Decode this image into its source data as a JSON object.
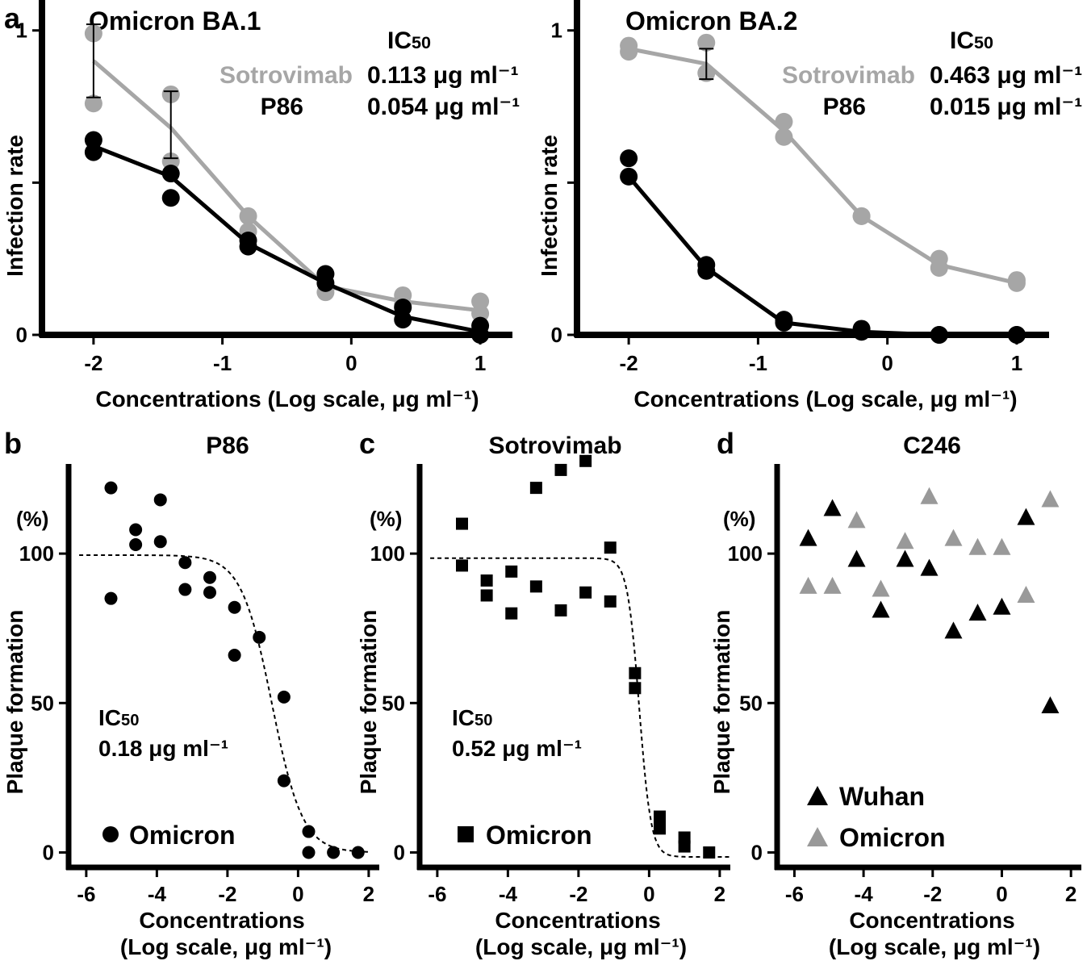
{
  "colors": {
    "gray": "#a6a6a6",
    "black": "#000000",
    "triangle_gray": "#999999"
  },
  "chart_data": [
    {
      "panel": "a",
      "type": "line",
      "title": "Omicron BA.1",
      "xlabel": "Concentrations (Log scale, μg ml⁻¹)",
      "ylabel": "Infection rate",
      "xlim": [
        -2.4,
        1.25
      ],
      "ylim": [
        0,
        1.1
      ],
      "xticks": [
        -2,
        -1,
        0,
        1
      ],
      "yticks": [
        0,
        0.5,
        1
      ],
      "ytick_labels": [
        "0",
        "",
        "1"
      ],
      "ic50_header": "IC50",
      "ic50_entries": [
        {
          "name": "Sotrovimab",
          "value": "0.113 μg ml⁻¹"
        },
        {
          "name": "P86",
          "value": "0.054 μg ml⁻¹"
        }
      ],
      "series": [
        {
          "name": "Sotrovimab",
          "color": "#a6a6a6",
          "x": [
            -2,
            -1.4,
            -0.8,
            -0.2,
            0.4,
            1
          ],
          "y": [
            0.9,
            0.68,
            0.39,
            0.16,
            0.11,
            0.08
          ],
          "points": [
            [
              -2,
              0.99
            ],
            [
              -2,
              0.76
            ],
            [
              -1.4,
              0.79
            ],
            [
              -1.4,
              0.57
            ],
            [
              -0.8,
              0.39
            ],
            [
              -0.8,
              0.34
            ],
            [
              -0.2,
              0.2
            ],
            [
              -0.2,
              0.14
            ],
            [
              0.4,
              0.13
            ],
            [
              0.4,
              0.1
            ],
            [
              1,
              0.11
            ],
            [
              1,
              0.07
            ]
          ],
          "error_bars": [
            [
              -2,
              0.78,
              1.02
            ],
            [
              -1.4,
              0.58,
              0.8
            ]
          ]
        },
        {
          "name": "P86",
          "color": "#000000",
          "x": [
            -2,
            -1.4,
            -0.8,
            -0.2,
            0.4,
            1
          ],
          "y": [
            0.62,
            0.52,
            0.3,
            0.17,
            0.06,
            0.01
          ],
          "points": [
            [
              -2,
              0.64
            ],
            [
              -2,
              0.6
            ],
            [
              -1.4,
              0.53
            ],
            [
              -1.4,
              0.45
            ],
            [
              -0.8,
              0.31
            ],
            [
              -0.8,
              0.29
            ],
            [
              -0.2,
              0.2
            ],
            [
              -0.2,
              0.17
            ],
            [
              0.4,
              0.09
            ],
            [
              0.4,
              0.05
            ],
            [
              1,
              0.03
            ],
            [
              1,
              0.0
            ]
          ]
        }
      ]
    },
    {
      "panel": "",
      "type": "line",
      "title": "Omicron BA.2",
      "xlabel": "Concentrations (Log scale, μg ml⁻¹)",
      "ylabel": "Infection rate",
      "xlim": [
        -2.4,
        1.25
      ],
      "ylim": [
        0,
        1.1
      ],
      "xticks": [
        -2,
        -1,
        0,
        1
      ],
      "yticks": [
        0,
        0.5,
        1
      ],
      "ytick_labels": [
        "0",
        "",
        "1"
      ],
      "ic50_header": "IC50",
      "ic50_entries": [
        {
          "name": "Sotrovimab",
          "value": "0.463 μg ml⁻¹"
        },
        {
          "name": "P86",
          "value": "0.015 μg ml⁻¹"
        }
      ],
      "series": [
        {
          "name": "Sotrovimab",
          "color": "#a6a6a6",
          "x": [
            -2,
            -1.4,
            -0.8,
            -0.2,
            0.4,
            1
          ],
          "y": [
            0.94,
            0.89,
            0.67,
            0.39,
            0.23,
            0.17
          ],
          "points": [
            [
              -2,
              0.95
            ],
            [
              -2,
              0.93
            ],
            [
              -1.4,
              0.96
            ],
            [
              -1.4,
              0.86
            ],
            [
              -0.8,
              0.7
            ],
            [
              -0.8,
              0.65
            ],
            [
              -0.2,
              0.39
            ],
            [
              -0.2,
              0.39
            ],
            [
              0.4,
              0.25
            ],
            [
              0.4,
              0.22
            ],
            [
              1,
              0.18
            ],
            [
              1,
              0.17
            ]
          ],
          "error_bars": [
            [
              -1.4,
              0.84,
              0.94
            ]
          ]
        },
        {
          "name": "P86",
          "color": "#000000",
          "x": [
            -2,
            -1.4,
            -0.8,
            -0.2,
            0.4,
            1
          ],
          "y": [
            0.52,
            0.22,
            0.04,
            0.01,
            0.0,
            0.0
          ],
          "points": [
            [
              -2,
              0.58
            ],
            [
              -2,
              0.52
            ],
            [
              -1.4,
              0.23
            ],
            [
              -1.4,
              0.21
            ],
            [
              -0.8,
              0.05
            ],
            [
              -0.8,
              0.04
            ],
            [
              -0.2,
              0.02
            ],
            [
              -0.2,
              0.01
            ],
            [
              0.4,
              0.0
            ],
            [
              0.4,
              0.0
            ],
            [
              1,
              0.0
            ],
            [
              1,
              0.0
            ]
          ]
        }
      ]
    },
    {
      "panel": "b",
      "type": "scatter",
      "title": "P86",
      "xlabel_line1": "Concentrations",
      "xlabel_line2": "(Log scale, μg ml⁻¹)",
      "ylabel": "Plaque formation",
      "yunit": "(%)",
      "xlim": [
        -6.5,
        2.3
      ],
      "ylim": [
        -5,
        130
      ],
      "xticks": [
        -6,
        -4,
        -2,
        0,
        2
      ],
      "yticks": [
        0,
        50,
        100
      ],
      "ic50_line1": "IC50",
      "ic50_line2": "0.18 μg ml⁻¹",
      "legend": [
        {
          "name": "Omicron",
          "marker": "circle",
          "color": "#000000"
        }
      ],
      "series": [
        {
          "name": "Omicron",
          "marker": "circle",
          "color": "#000000",
          "x": [
            -5.3,
            -5.3,
            -4.6,
            -4.6,
            -3.9,
            -3.9,
            -3.2,
            -3.2,
            -2.5,
            -2.5,
            -1.8,
            -1.8,
            -1.1,
            -0.4,
            -0.4,
            0.3,
            0.3,
            1.0,
            1.7
          ],
          "y": [
            122,
            85,
            108,
            103,
            118,
            104,
            97,
            88,
            92,
            87,
            82,
            66,
            72,
            52,
            24,
            7,
            0,
            0,
            0
          ]
        }
      ],
      "fit": {
        "top": 99.5,
        "bottom": 0,
        "log_ic50": -0.74,
        "hill": 1.0,
        "x_range": [
          -6.2,
          2.0
        ]
      }
    },
    {
      "panel": "c",
      "type": "scatter",
      "title": "Sotrovimab",
      "xlabel_line1": "Concentrations",
      "xlabel_line2": "(Log scale, μg ml⁻¹)",
      "ylabel": "Plaque formation",
      "yunit": "(%)",
      "xlim": [
        -6.5,
        2.3
      ],
      "ylim": [
        -5,
        130
      ],
      "xticks": [
        -6,
        -4,
        -2,
        0,
        2
      ],
      "yticks": [
        0,
        50,
        100
      ],
      "ic50_line1": "IC50",
      "ic50_line2": "0.52 μg ml⁻¹",
      "legend": [
        {
          "name": "Omicron",
          "marker": "square",
          "color": "#000000"
        }
      ],
      "series": [
        {
          "name": "Omicron",
          "marker": "square",
          "color": "#000000",
          "x": [
            -5.3,
            -5.3,
            -4.6,
            -4.6,
            -3.9,
            -3.9,
            -3.2,
            -3.2,
            -2.5,
            -2.5,
            -1.8,
            -1.8,
            -1.1,
            -1.1,
            -0.4,
            -0.4,
            0.3,
            0.3,
            1.0,
            1.0,
            1.7
          ],
          "y": [
            110,
            96,
            91,
            86,
            94,
            80,
            122,
            89,
            81,
            128,
            87,
            131,
            102,
            84,
            60,
            55,
            12,
            8,
            5,
            2,
            0
          ]
        }
      ],
      "fit": {
        "top": 98.5,
        "bottom": -1.5,
        "log_ic50": -0.28,
        "hill": 2.6,
        "x_range": [
          -6.2,
          2.3
        ]
      }
    },
    {
      "panel": "d",
      "type": "scatter",
      "title": "C246",
      "xlabel_line1": "Concentrations",
      "xlabel_line2": "(Log scale, μg ml⁻¹)",
      "ylabel": "Plaque formation",
      "yunit": "(%)",
      "xlim": [
        -6.5,
        2.3
      ],
      "ylim": [
        -5,
        130
      ],
      "xticks": [
        -6,
        -4,
        -2,
        0,
        2
      ],
      "yticks": [
        0,
        50,
        100
      ],
      "legend": [
        {
          "name": "Wuhan",
          "marker": "triangle",
          "color": "#000000"
        },
        {
          "name": "Omicron",
          "marker": "triangle",
          "color": "#999999"
        }
      ],
      "series": [
        {
          "name": "Wuhan",
          "marker": "triangle",
          "color": "#000000",
          "x": [
            -5.6,
            -4.9,
            -4.2,
            -3.5,
            -2.8,
            -2.1,
            -1.4,
            -0.7,
            0.0,
            0.7,
            1.4
          ],
          "y": [
            105,
            115,
            98,
            81,
            98,
            95,
            74,
            80,
            82,
            112,
            49
          ]
        },
        {
          "name": "Omicron",
          "marker": "triangle",
          "color": "#999999",
          "x": [
            -5.6,
            -4.9,
            -4.2,
            -3.5,
            -2.8,
            -2.1,
            -1.4,
            -0.7,
            0.0,
            0.7,
            1.4
          ],
          "y": [
            89,
            89,
            111,
            88,
            104,
            119,
            105,
            102,
            102,
            86,
            118
          ]
        }
      ]
    }
  ]
}
